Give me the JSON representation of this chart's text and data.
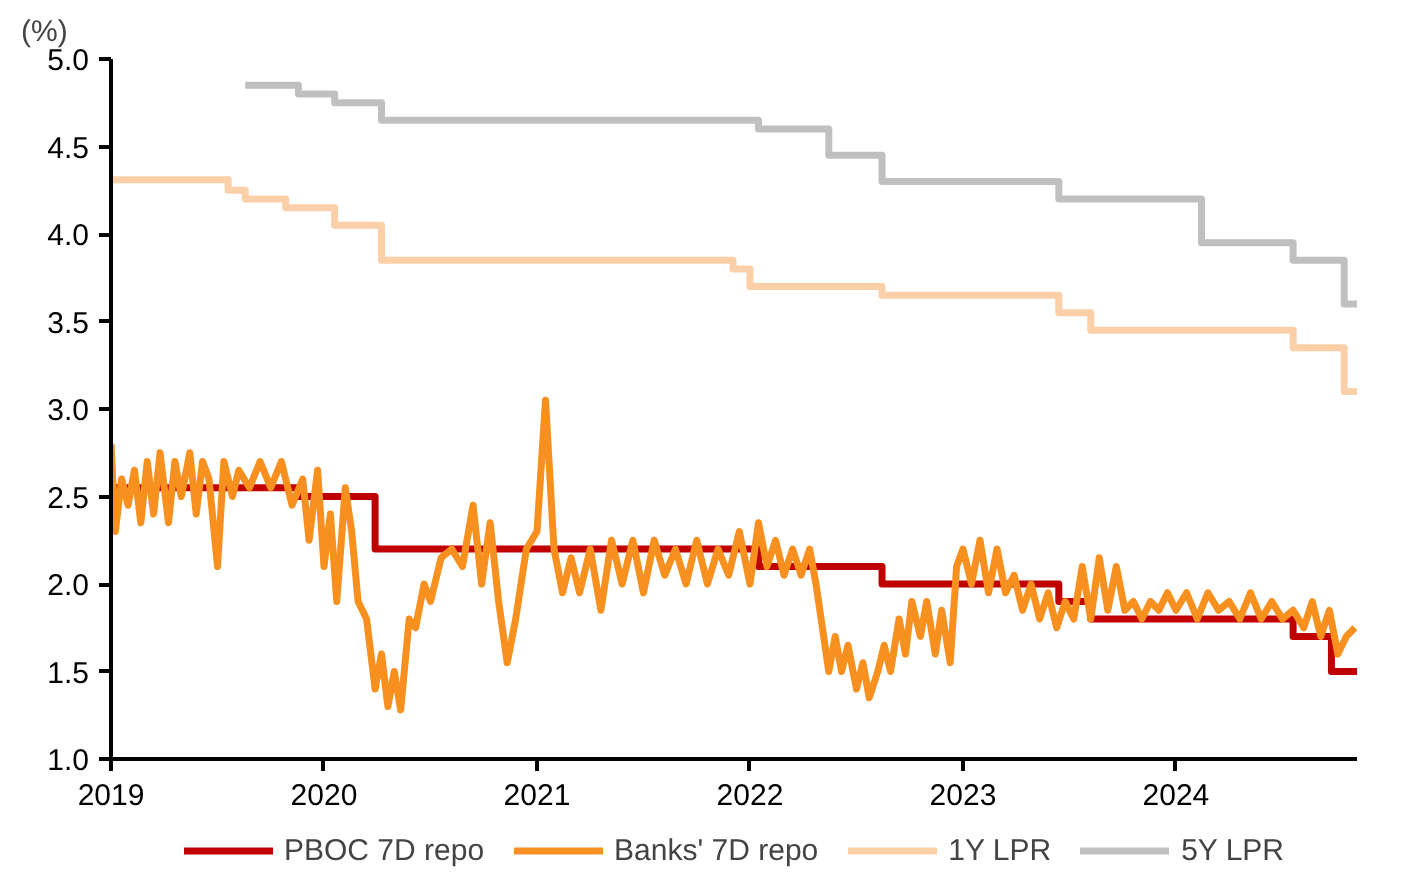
{
  "chart_data": {
    "type": "line",
    "ylabel": "(%)",
    "xlim": [
      2019,
      2024.85
    ],
    "ylim": [
      1,
      5
    ],
    "xticks": [
      2019,
      2020,
      2021,
      2022,
      2023,
      2024
    ],
    "yticks": [
      {
        "value": 1,
        "label": "1.0"
      },
      {
        "value": 1.5,
        "label": "1.5"
      },
      {
        "value": 2,
        "label": "2.0"
      },
      {
        "value": 2.5,
        "label": "2.5"
      },
      {
        "value": 3,
        "label": "3.0"
      },
      {
        "value": 3.5,
        "label": "3.5"
      },
      {
        "value": 4,
        "label": "4.0"
      },
      {
        "value": 4.5,
        "label": "4.5"
      },
      {
        "value": 5,
        "label": "5.0"
      }
    ],
    "grid": false,
    "legend": "bottom",
    "marker": "none",
    "line_style": "solid",
    "series": [
      {
        "name": "PBOC 7D repo",
        "type": "step",
        "color": "#c00000",
        "x": [
          2019,
          2019.88,
          2020.24,
          2022.04,
          2022.62,
          2023.45,
          2023.6,
          2024.55,
          2024.73,
          2024.85
        ],
        "values": [
          2.55,
          2.5,
          2.2,
          2.1,
          2.0,
          1.9,
          1.8,
          1.7,
          1.5,
          1.5
        ]
      },
      {
        "name": "Banks' 7D repo",
        "color": "#f7901e",
        "x": [
          2019.0,
          2019.02,
          2019.05,
          2019.08,
          2019.11,
          2019.14,
          2019.17,
          2019.2,
          2019.23,
          2019.27,
          2019.3,
          2019.33,
          2019.37,
          2019.4,
          2019.43,
          2019.46,
          2019.5,
          2019.53,
          2019.57,
          2019.6,
          2019.65,
          2019.7,
          2019.75,
          2019.8,
          2019.85,
          2019.9,
          2019.93,
          2019.97,
          2020.0,
          2020.03,
          2020.06,
          2020.1,
          2020.13,
          2020.16,
          2020.2,
          2020.24,
          2020.27,
          2020.3,
          2020.33,
          2020.36,
          2020.4,
          2020.43,
          2020.47,
          2020.5,
          2020.55,
          2020.6,
          2020.65,
          2020.7,
          2020.74,
          2020.78,
          2020.82,
          2020.86,
          2020.9,
          2020.95,
          2021.0,
          2021.04,
          2021.08,
          2021.12,
          2021.16,
          2021.2,
          2021.25,
          2021.3,
          2021.35,
          2021.4,
          2021.45,
          2021.5,
          2021.55,
          2021.6,
          2021.65,
          2021.7,
          2021.75,
          2021.8,
          2021.85,
          2021.9,
          2021.95,
          2022.0,
          2022.04,
          2022.08,
          2022.12,
          2022.16,
          2022.2,
          2022.24,
          2022.28,
          2022.31,
          2022.34,
          2022.37,
          2022.4,
          2022.43,
          2022.46,
          2022.5,
          2022.53,
          2022.56,
          2022.6,
          2022.63,
          2022.66,
          2022.7,
          2022.73,
          2022.76,
          2022.8,
          2022.83,
          2022.87,
          2022.9,
          2022.94,
          2022.97,
          2023.0,
          2023.04,
          2023.08,
          2023.12,
          2023.16,
          2023.2,
          2023.24,
          2023.28,
          2023.32,
          2023.36,
          2023.4,
          2023.44,
          2023.48,
          2023.52,
          2023.56,
          2023.6,
          2023.64,
          2023.68,
          2023.72,
          2023.76,
          2023.8,
          2023.84,
          2023.88,
          2023.92,
          2023.96,
          2024.0,
          2024.05,
          2024.1,
          2024.15,
          2024.2,
          2024.25,
          2024.3,
          2024.35,
          2024.4,
          2024.45,
          2024.5,
          2024.55,
          2024.6,
          2024.64,
          2024.68,
          2024.72,
          2024.76,
          2024.8,
          2024.84
        ],
        "values": [
          2.8,
          2.3,
          2.6,
          2.45,
          2.65,
          2.35,
          2.7,
          2.4,
          2.75,
          2.35,
          2.7,
          2.5,
          2.75,
          2.4,
          2.7,
          2.6,
          2.1,
          2.7,
          2.5,
          2.65,
          2.55,
          2.7,
          2.55,
          2.7,
          2.45,
          2.6,
          2.25,
          2.65,
          2.1,
          2.4,
          1.9,
          2.55,
          2.3,
          1.9,
          1.8,
          1.4,
          1.6,
          1.3,
          1.5,
          1.28,
          1.8,
          1.75,
          2.0,
          1.9,
          2.15,
          2.2,
          2.1,
          2.45,
          2.0,
          2.35,
          1.9,
          1.55,
          1.8,
          2.2,
          2.3,
          3.05,
          2.2,
          1.95,
          2.15,
          1.95,
          2.2,
          1.85,
          2.25,
          2.0,
          2.25,
          1.95,
          2.25,
          2.05,
          2.2,
          2.0,
          2.25,
          2.0,
          2.2,
          2.05,
          2.3,
          2.0,
          2.35,
          2.1,
          2.25,
          2.05,
          2.2,
          2.05,
          2.2,
          2.0,
          1.75,
          1.5,
          1.7,
          1.5,
          1.65,
          1.4,
          1.55,
          1.35,
          1.5,
          1.65,
          1.5,
          1.8,
          1.6,
          1.9,
          1.7,
          1.9,
          1.6,
          1.85,
          1.55,
          2.1,
          2.2,
          2.0,
          2.25,
          1.95,
          2.2,
          1.95,
          2.05,
          1.85,
          2.0,
          1.8,
          1.95,
          1.75,
          1.9,
          1.8,
          2.1,
          1.8,
          2.15,
          1.85,
          2.1,
          1.85,
          1.9,
          1.8,
          1.9,
          1.85,
          1.95,
          1.85,
          1.95,
          1.8,
          1.95,
          1.85,
          1.9,
          1.8,
          1.95,
          1.8,
          1.9,
          1.8,
          1.85,
          1.75,
          1.9,
          1.7,
          1.85,
          1.6,
          1.7,
          1.75
        ]
      },
      {
        "name": "1Y LPR",
        "type": "step",
        "color": "#fbcfa8",
        "x": [
          2019,
          2019.55,
          2019.63,
          2019.82,
          2020.05,
          2020.27,
          2021.92,
          2022.0,
          2022.62,
          2023.45,
          2023.6,
          2024.55,
          2024.79,
          2024.85
        ],
        "values": [
          4.31,
          4.25,
          4.2,
          4.15,
          4.05,
          3.85,
          3.8,
          3.7,
          3.65,
          3.55,
          3.45,
          3.35,
          3.1,
          3.1
        ]
      },
      {
        "name": "5Y LPR",
        "type": "step",
        "color": "#c0c0c0",
        "x": [
          2019.63,
          2019.88,
          2020.05,
          2020.27,
          2022.04,
          2022.37,
          2022.62,
          2023.45,
          2024.12,
          2024.55,
          2024.79,
          2024.85
        ],
        "values": [
          4.85,
          4.8,
          4.75,
          4.65,
          4.6,
          4.45,
          4.3,
          4.2,
          3.95,
          3.85,
          3.6,
          3.6
        ]
      }
    ]
  }
}
